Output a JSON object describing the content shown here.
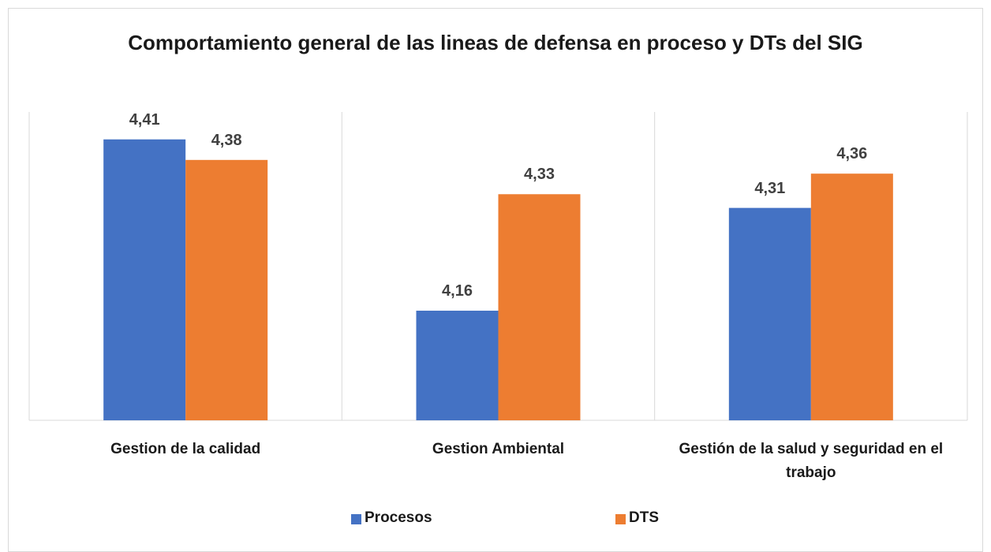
{
  "chart_data": {
    "type": "bar",
    "title": "Comportamiento general de las lineas de defensa en proceso y DTs del SIG",
    "categories": [
      "Gestion de la calidad",
      "Gestion Ambiental",
      "Gestión de la salud y seguridad en el trabajo"
    ],
    "series": [
      {
        "name": "Procesos",
        "color": "#4472c4",
        "values": [
          4.41,
          4.16,
          4.31
        ],
        "value_labels": [
          "4,41",
          "4,16",
          "4,31"
        ]
      },
      {
        "name": "DTS",
        "color": "#ed7d31",
        "values": [
          4.38,
          4.33,
          4.36
        ],
        "value_labels": [
          "4,38",
          "4,33",
          "4,36"
        ]
      }
    ],
    "ylim": [
      4.0,
      4.45
    ],
    "legend": "bottom"
  }
}
